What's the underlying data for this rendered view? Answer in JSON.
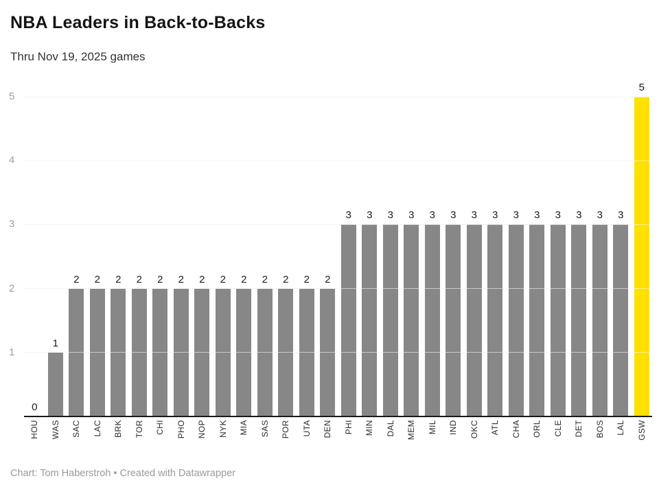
{
  "header": {
    "title": "NBA Leaders in Back-to-Backs",
    "subtitle": "Thru Nov 19, 2025 games"
  },
  "footer": {
    "credit": "Chart: Tom Haberstroh • Created with Datawrapper"
  },
  "chart_data": {
    "type": "bar",
    "title": "NBA Leaders in Back-to-Backs",
    "subtitle": "Thru Nov 19, 2025 games",
    "categories": [
      "HOU",
      "WAS",
      "SAC",
      "LAC",
      "BRK",
      "TOR",
      "CHI",
      "PHO",
      "NOP",
      "NYK",
      "MIA",
      "SAS",
      "POR",
      "UTA",
      "DEN",
      "PHI",
      "MIN",
      "DAL",
      "MEM",
      "MIL",
      "IND",
      "OKC",
      "ATL",
      "CHA",
      "ORL",
      "CLE",
      "DET",
      "BOS",
      "LAL",
      "GSW"
    ],
    "values": [
      0,
      1,
      2,
      2,
      2,
      2,
      2,
      2,
      2,
      2,
      2,
      2,
      2,
      2,
      2,
      3,
      3,
      3,
      3,
      3,
      3,
      3,
      3,
      3,
      3,
      3,
      3,
      3,
      3,
      5
    ],
    "xlabel": "",
    "ylabel": "",
    "ylim": [
      0,
      5
    ],
    "yticks": [
      1,
      2,
      3,
      4,
      5
    ],
    "grid": true,
    "value_labels": true,
    "legend": false,
    "bar_color": "#878787",
    "highlight_category": "GSW",
    "highlight_color": "#ffe000",
    "axis_label_color": "#9e9e9e",
    "gridline_color": "#e6e6e6"
  }
}
